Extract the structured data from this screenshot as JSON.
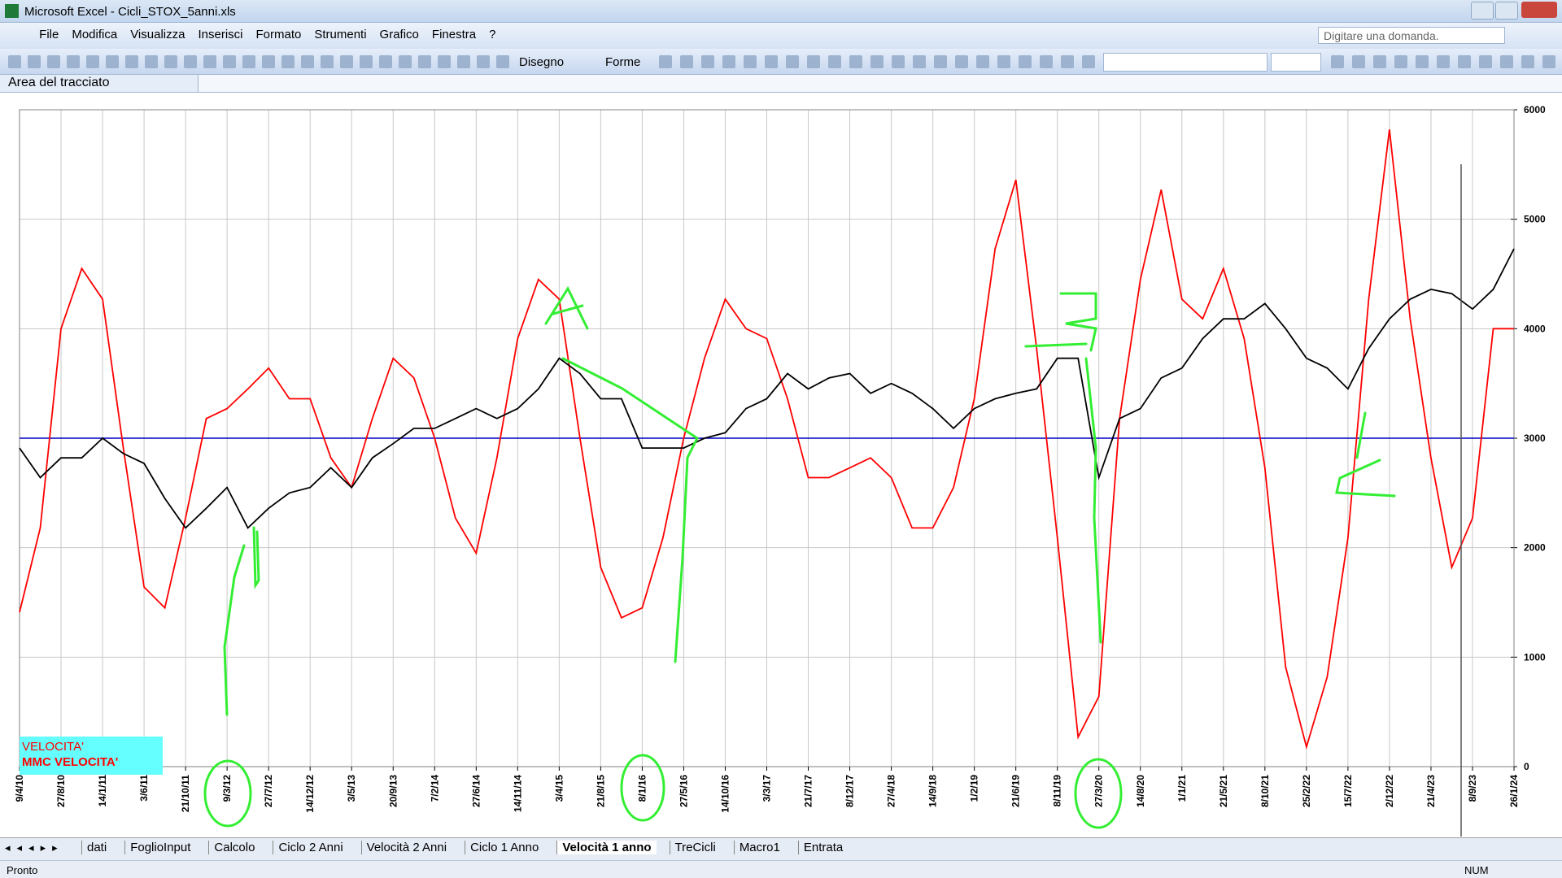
{
  "window": {
    "title": "Microsoft Excel - Cicli_STOX_5anni.xls"
  },
  "menu": [
    "File",
    "Modifica",
    "Visualizza",
    "Inserisci",
    "Formato",
    "Strumenti",
    "Grafico",
    "Finestra",
    "?"
  ],
  "help_box": "Digitare una domanda.",
  "toolbar": {
    "drawing": "Disegno",
    "shapes": "Forme"
  },
  "name_box": "Area del tracciato",
  "chart_data": {
    "type": "line",
    "categories": [
      "9/4/10",
      null,
      "27/8/10",
      null,
      "14/1/11",
      null,
      "3/6/11",
      null,
      "21/10/11",
      null,
      "9/3/12",
      null,
      "27/7/12",
      null,
      "14/12/12",
      null,
      "3/5/13",
      null,
      "20/9/13",
      null,
      "7/2/14",
      null,
      "27/6/14",
      null,
      "14/11/14",
      null,
      "3/4/15",
      null,
      "21/8/15",
      null,
      "8/1/16",
      null,
      "27/5/16",
      null,
      "14/10/16",
      null,
      "3/3/17",
      null,
      "21/7/17",
      null,
      "8/12/17",
      null,
      "27/4/18",
      null,
      "14/9/18",
      null,
      "1/2/19",
      null,
      "21/6/19",
      null,
      "8/11/19",
      null,
      "27/3/20",
      null,
      "14/8/20",
      null,
      "1/1/21",
      null,
      "21/5/21",
      null,
      "8/10/21",
      null,
      "25/2/22",
      null,
      "15/7/22",
      null,
      "2/12/22",
      null,
      "21/4/23",
      null,
      "8/9/23",
      null,
      "26/1/24"
    ],
    "series": [
      {
        "name": "VELOCITA'",
        "color": "#ff0000",
        "values": [
          1410,
          2180,
          4000,
          4550,
          4270,
          2910,
          1640,
          1450,
          2270,
          3180,
          3270,
          3450,
          3640,
          3360,
          3360,
          2820,
          2550,
          3180,
          3730,
          3550,
          3000,
          2270,
          1950,
          2820,
          3910,
          4450,
          4270,
          3000,
          1820,
          1360,
          1450,
          2090,
          3000,
          3730,
          4270,
          4000,
          3910,
          3360,
          2640,
          2640,
          2730,
          2820,
          2640,
          2180,
          2180,
          2550,
          3360,
          4730,
          5360,
          3820,
          2090,
          270,
          640,
          3180,
          4450,
          5270,
          4270,
          4090,
          4550,
          3910,
          2730,
          910,
          180,
          820,
          2090,
          4270,
          5820,
          4090,
          2820,
          1820,
          2270,
          4000,
          4000
        ]
      },
      {
        "name": "MMC VELOCITA'",
        "color": "#000000",
        "values": [
          2910,
          2640,
          2820,
          2820,
          3000,
          2860,
          2770,
          2450,
          2180,
          2360,
          2550,
          2180,
          2360,
          2500,
          2550,
          2730,
          2550,
          2820,
          2950,
          3090,
          3090,
          3180,
          3270,
          3180,
          3270,
          3450,
          3730,
          3590,
          3360,
          3360,
          2910,
          2910,
          2910,
          3000,
          3050,
          3270,
          3360,
          3590,
          3450,
          3550,
          3590,
          3410,
          3500,
          3410,
          3270,
          3090,
          3270,
          3360,
          3410,
          3450,
          3730,
          3730,
          2640,
          3180,
          3270,
          3550,
          3640,
          3910,
          4090,
          4090,
          4230,
          4000,
          3730,
          3640,
          3450,
          3820,
          4090,
          4270,
          4360,
          4320,
          4180,
          4360,
          4730
        ]
      }
    ],
    "ylim": [
      0,
      6000
    ],
    "yticks": [
      0,
      1000,
      2000,
      3000,
      4000,
      5000,
      6000
    ],
    "y_axis_side": "right",
    "grid": true,
    "hline": {
      "value": 3000,
      "color": "#0000c0"
    },
    "legend": "bottom-left",
    "legend_background": "#66ffff",
    "legend_text_color": "#ff0000"
  },
  "sheet_tabs": [
    {
      "label": "dati"
    },
    {
      "label": "FoglioInput"
    },
    {
      "label": "Calcolo"
    },
    {
      "label": "Ciclo 2 Anni"
    },
    {
      "label": "Velocità 2 Anni"
    },
    {
      "label": "Ciclo 1 Anno"
    },
    {
      "label": "Velocità 1 anno",
      "active": true
    },
    {
      "label": "TreCicli"
    },
    {
      "label": "Macro1"
    },
    {
      "label": "Entrata"
    }
  ],
  "status": {
    "left": "Pronto",
    "num": "NUM"
  }
}
